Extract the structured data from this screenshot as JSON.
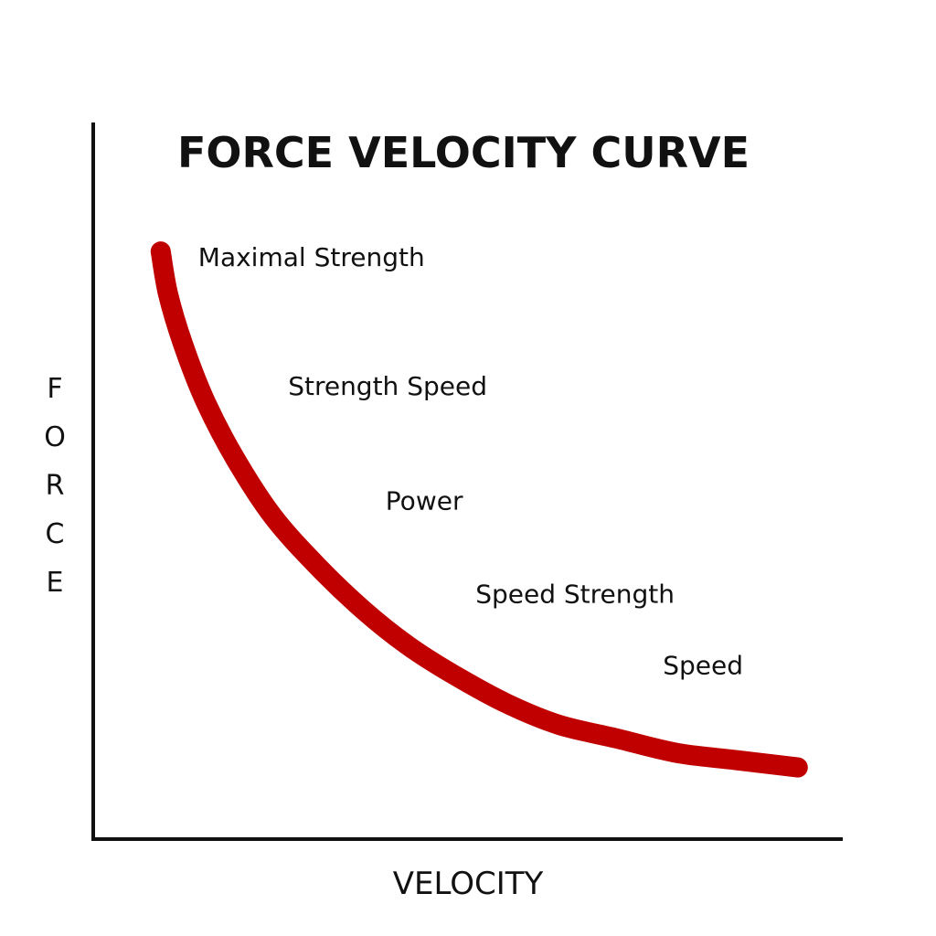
{
  "chart_data": {
    "type": "line",
    "title": "FORCE VELOCITY CURVE",
    "xlabel": "VELOCITY",
    "ylabel": "FORCE",
    "xlim": [
      0,
      1
    ],
    "ylim": [
      0,
      1
    ],
    "grid": false,
    "x_ticks_shown": false,
    "y_ticks_shown": false,
    "series": [
      {
        "color": "#c00000",
        "x": [
          0.09,
          0.1,
          0.12,
          0.15,
          0.19,
          0.24,
          0.3,
          0.36,
          0.42,
          0.48,
          0.55,
          0.62,
          0.7,
          0.78,
          0.86,
          0.94
        ],
        "y": [
          0.82,
          0.76,
          0.69,
          0.61,
          0.53,
          0.45,
          0.38,
          0.32,
          0.27,
          0.23,
          0.19,
          0.16,
          0.14,
          0.12,
          0.11,
          0.1
        ]
      }
    ],
    "annotations": [
      {
        "text": "Maximal Strength",
        "x": 0.14,
        "y": 0.8
      },
      {
        "text": "Strength Speed",
        "x": 0.26,
        "y": 0.62
      },
      {
        "text": "Power",
        "x": 0.39,
        "y": 0.46
      },
      {
        "text": "Speed Strength",
        "x": 0.51,
        "y": 0.33
      },
      {
        "text": "Speed",
        "x": 0.76,
        "y": 0.23
      }
    ]
  },
  "colors": {
    "curve": "#c00000",
    "axis": "#111111",
    "text": "#111111",
    "background": "#ffffff"
  }
}
